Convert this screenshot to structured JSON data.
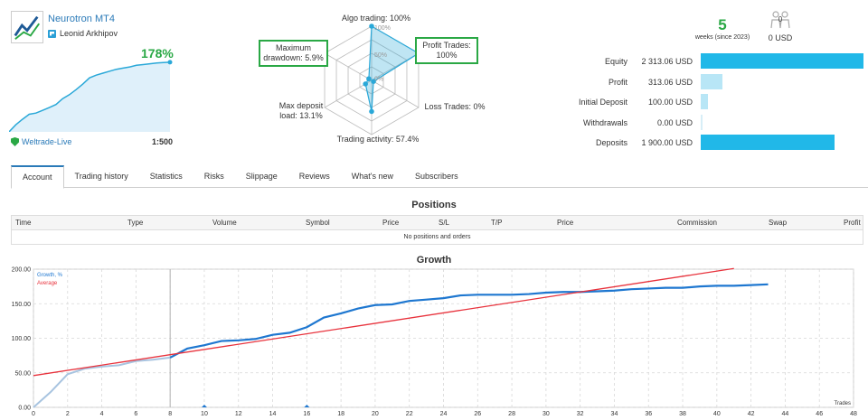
{
  "signal": {
    "name": "Neurotron MT4",
    "author": "Leonid Arkhipov",
    "growth": "178%",
    "broker": "Weltrade-Live",
    "leverage": "1:500"
  },
  "mini_growth": [
    0,
    18,
    32,
    45,
    48,
    55,
    62,
    70,
    85,
    95,
    108,
    122,
    138,
    145,
    150,
    155,
    160,
    163,
    166,
    170,
    172,
    174,
    176,
    177,
    178
  ],
  "radar": {
    "labels": {
      "algo": "Algo trading: 100%",
      "profit": "Profit Trades:\n100%",
      "loss": "Loss Trades: 0%",
      "activity": "Trading activity: 57.4%",
      "load": "Max deposit\nload: 13.1%",
      "drawdown": "Maximum\ndrawdown: 5.9%"
    },
    "values": [
      100,
      100,
      0,
      57.4,
      13.1,
      5.9
    ],
    "rings": [
      "100%",
      "50%",
      "0%"
    ]
  },
  "weeks": {
    "number": "5",
    "text": "weeks (since 2023)"
  },
  "subscribers": {
    "count": "0",
    "amount": "0 USD"
  },
  "stats": [
    {
      "label": "Equity",
      "value": "2 313.06 USD",
      "amount": 2313.06
    },
    {
      "label": "Profit",
      "value": "313.06 USD",
      "amount": 313.06
    },
    {
      "label": "Initial Deposit",
      "value": "100.00 USD",
      "amount": 100.0
    },
    {
      "label": "Withdrawals",
      "value": "0.00 USD",
      "amount": 0
    },
    {
      "label": "Deposits",
      "value": "1 900.00 USD",
      "amount": 1900.0
    }
  ],
  "tabs": [
    "Account",
    "Trading history",
    "Statistics",
    "Risks",
    "Slippage",
    "Reviews",
    "What's new",
    "Subscribers"
  ],
  "positions": {
    "title": "Positions",
    "columns": [
      "Time",
      "Type",
      "Volume",
      "Symbol",
      "Price",
      "S/L",
      "T/P",
      "Price",
      "Commission",
      "Swap",
      "Profit"
    ],
    "empty": "No positions and orders"
  },
  "growth": {
    "title": "Growth",
    "legend": {
      "growth": "Growth, %",
      "average": "Average"
    },
    "x_label": "Trades",
    "colors": {
      "growth": "#1e77d0",
      "growth_early": "#a8c4e0",
      "average": "#e8323c",
      "grid": "#d8d8d8"
    }
  },
  "chart_data": {
    "type": "line",
    "title": "Growth",
    "xlabel": "Trades",
    "ylabel": "",
    "xlim": [
      0,
      48
    ],
    "ylim": [
      0,
      200
    ],
    "x_ticks": [
      0,
      2,
      4,
      6,
      8,
      10,
      12,
      14,
      16,
      18,
      20,
      22,
      24,
      26,
      28,
      30,
      32,
      34,
      36,
      38,
      40,
      42,
      44,
      46,
      48
    ],
    "y_ticks": [
      "0.00",
      "50.00",
      "100.00",
      "150.00",
      "200.00"
    ],
    "series": [
      {
        "name": "Growth, %",
        "x": [
          0,
          1,
          2,
          3,
          4,
          5,
          6,
          7,
          8,
          9,
          10,
          11,
          12,
          13,
          14,
          15,
          16,
          17,
          18,
          19,
          20,
          21,
          22,
          23,
          24,
          25,
          26,
          27,
          28,
          29,
          30,
          31,
          32,
          33,
          34,
          35,
          36,
          37,
          38,
          39,
          40,
          41,
          42,
          43
        ],
        "y": [
          0,
          22,
          48,
          56,
          59,
          61,
          67,
          69,
          72,
          85,
          90,
          96,
          97,
          99,
          105,
          108,
          116,
          130,
          136,
          143,
          148,
          149,
          154,
          156,
          158,
          162,
          163,
          163,
          163,
          164,
          166,
          167,
          167,
          168,
          169,
          171,
          172,
          173,
          173,
          175,
          176,
          176,
          177,
          178
        ]
      },
      {
        "name": "Average",
        "x": [
          0,
          41
        ],
        "y": [
          46,
          201
        ]
      }
    ],
    "markers": [
      10,
      16
    ],
    "divider_x": 8,
    "legend_placement": "top-left",
    "grid": true
  }
}
